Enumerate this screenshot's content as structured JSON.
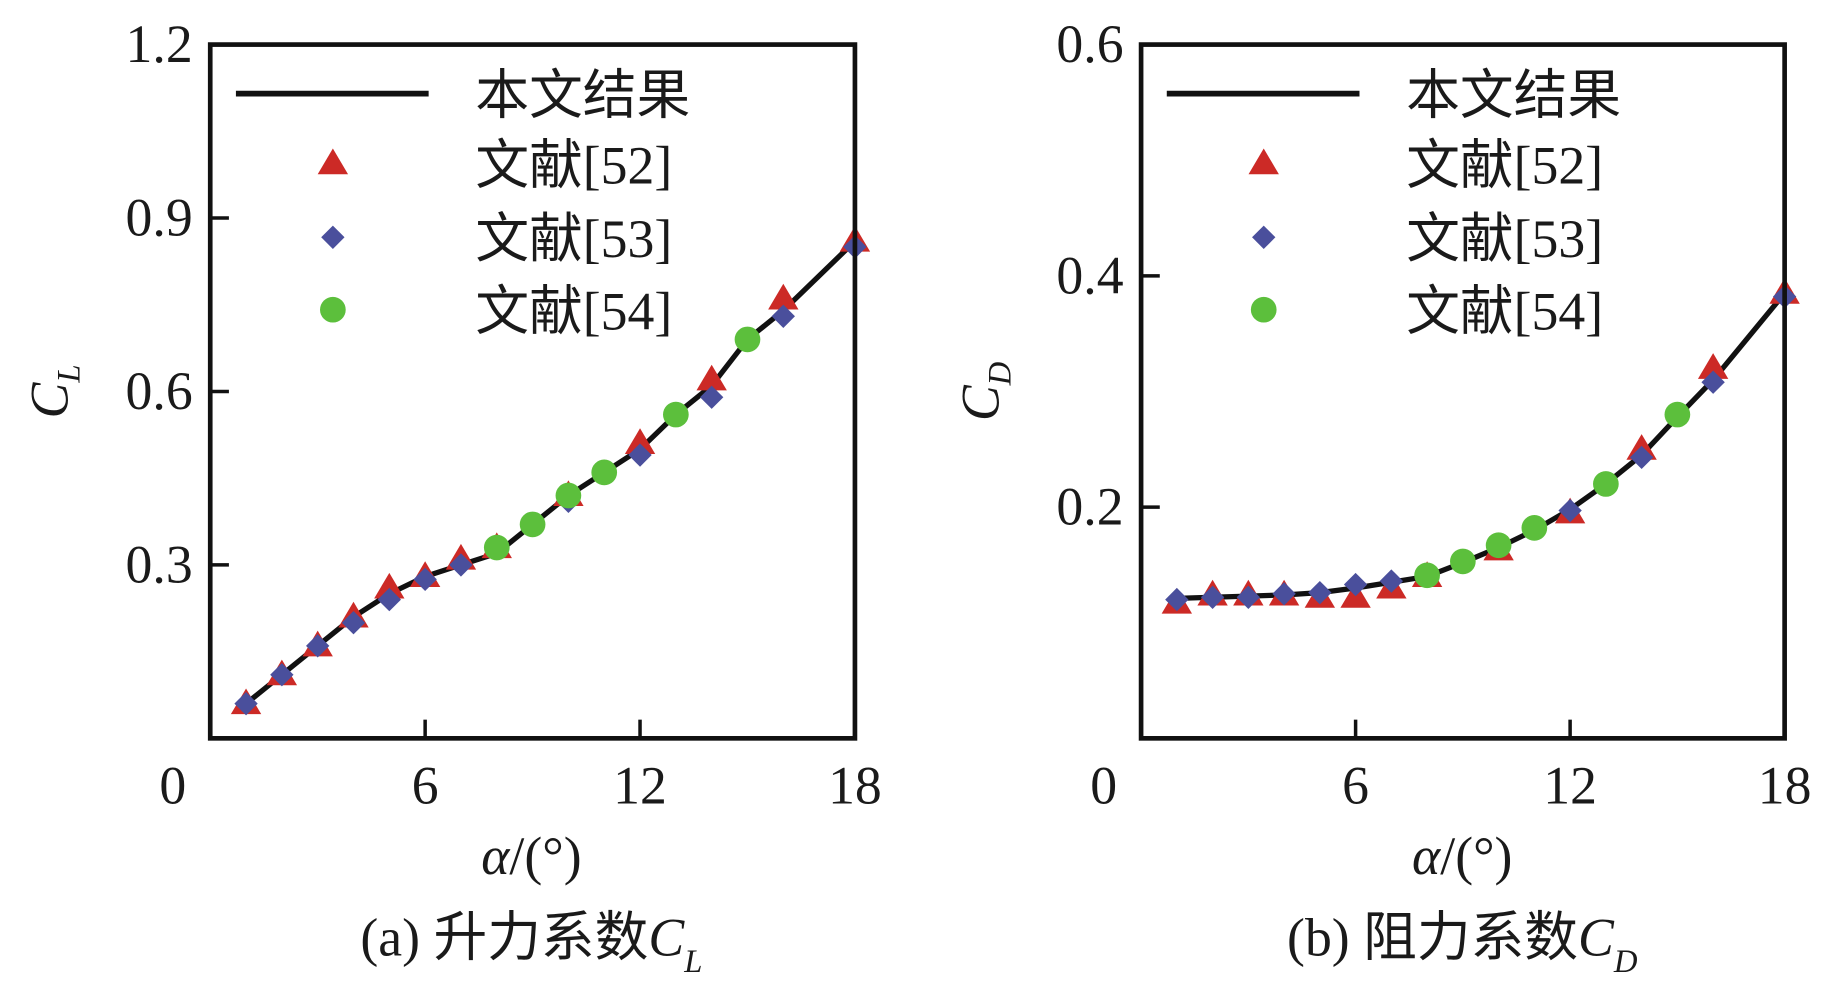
{
  "colors": {
    "line": "#111111",
    "ref52": "#cc2a26",
    "ref53": "#4a4f9c",
    "ref54": "#5cbf3c"
  },
  "chart_data": [
    {
      "type": "line",
      "caption_prefix": "(a) 升力系数",
      "caption_symbol": "C",
      "caption_sub": "L",
      "ylabel_symbol": "C",
      "ylabel_sub": "L",
      "xlabel_symbol": "α",
      "xlabel_rest": "/(°)",
      "xlim": [
        0,
        18
      ],
      "ylim": [
        0,
        1.2
      ],
      "xticks": [
        "0",
        "6",
        "12",
        "18"
      ],
      "xtick_values": [
        0,
        6,
        12,
        18
      ],
      "yticks": [
        "0.3",
        "0.6",
        "0.9",
        "1.2"
      ],
      "ytick_values": [
        0.3,
        0.6,
        0.9,
        1.2
      ],
      "legend_position": "top-left",
      "series": [
        {
          "name": "本文结果",
          "marker": "line",
          "x": [
            1,
            2,
            3,
            4,
            5,
            6,
            7,
            8,
            9,
            10,
            11,
            12,
            13,
            14,
            15,
            16,
            18
          ],
          "y": [
            0.06,
            0.11,
            0.16,
            0.21,
            0.25,
            0.28,
            0.3,
            0.32,
            0.37,
            0.42,
            0.46,
            0.5,
            0.56,
            0.61,
            0.69,
            0.74,
            0.86
          ]
        },
        {
          "name": "文献[52]",
          "marker": "triangle",
          "x": [
            1,
            2,
            3,
            4,
            5,
            6,
            7,
            8,
            10,
            12,
            14,
            16,
            18
          ],
          "y": [
            0.06,
            0.11,
            0.16,
            0.21,
            0.26,
            0.28,
            0.31,
            0.33,
            0.42,
            0.51,
            0.62,
            0.76,
            0.86
          ]
        },
        {
          "name": "文献[53]",
          "marker": "diamond",
          "x": [
            1,
            2,
            3,
            4,
            5,
            6,
            7,
            10,
            12,
            14,
            16,
            18
          ],
          "y": [
            0.06,
            0.11,
            0.16,
            0.2,
            0.24,
            0.275,
            0.3,
            0.41,
            0.49,
            0.59,
            0.73,
            0.85
          ]
        },
        {
          "name": "文献[54]",
          "marker": "circle",
          "x": [
            8,
            9,
            10,
            11,
            13,
            15
          ],
          "y": [
            0.33,
            0.37,
            0.42,
            0.46,
            0.56,
            0.69
          ]
        }
      ]
    },
    {
      "type": "line",
      "caption_prefix": "(b) 阻力系数",
      "caption_symbol": "C",
      "caption_sub": "D",
      "ylabel_symbol": "C",
      "ylabel_sub": "D",
      "xlabel_symbol": "α",
      "xlabel_rest": "/(°)",
      "xlim": [
        0,
        18
      ],
      "ylim": [
        0,
        0.6
      ],
      "xticks": [
        "0",
        "6",
        "12",
        "18"
      ],
      "xtick_values": [
        0,
        6,
        12,
        18
      ],
      "yticks": [
        "0.2",
        "0.4",
        "0.6"
      ],
      "ytick_values": [
        0.2,
        0.4,
        0.6
      ],
      "legend_position": "top-left",
      "series": [
        {
          "name": "本文结果",
          "marker": "line",
          "x": [
            1,
            2,
            3,
            4,
            5,
            6,
            7,
            8,
            9,
            10,
            11,
            12,
            13,
            14,
            15,
            16,
            18
          ],
          "y": [
            0.121,
            0.122,
            0.123,
            0.124,
            0.126,
            0.13,
            0.135,
            0.14,
            0.152,
            0.165,
            0.18,
            0.198,
            0.22,
            0.245,
            0.278,
            0.31,
            0.385
          ]
        },
        {
          "name": "文献[52]",
          "marker": "triangle",
          "x": [
            1,
            2,
            3,
            4,
            5,
            6,
            7,
            8,
            10,
            12,
            14,
            16,
            18
          ],
          "y": [
            0.117,
            0.124,
            0.124,
            0.124,
            0.122,
            0.122,
            0.13,
            0.14,
            0.163,
            0.195,
            0.25,
            0.32,
            0.385
          ]
        },
        {
          "name": "文献[53]",
          "marker": "diamond",
          "x": [
            1,
            2,
            3,
            4,
            5,
            6,
            7,
            12,
            14,
            16,
            18
          ],
          "y": [
            0.12,
            0.122,
            0.122,
            0.125,
            0.126,
            0.133,
            0.136,
            0.197,
            0.243,
            0.308,
            0.382
          ]
        },
        {
          "name": "文献[54]",
          "marker": "circle",
          "x": [
            8,
            9,
            10,
            11,
            13,
            15
          ],
          "y": [
            0.141,
            0.153,
            0.167,
            0.182,
            0.22,
            0.28
          ]
        }
      ]
    }
  ]
}
